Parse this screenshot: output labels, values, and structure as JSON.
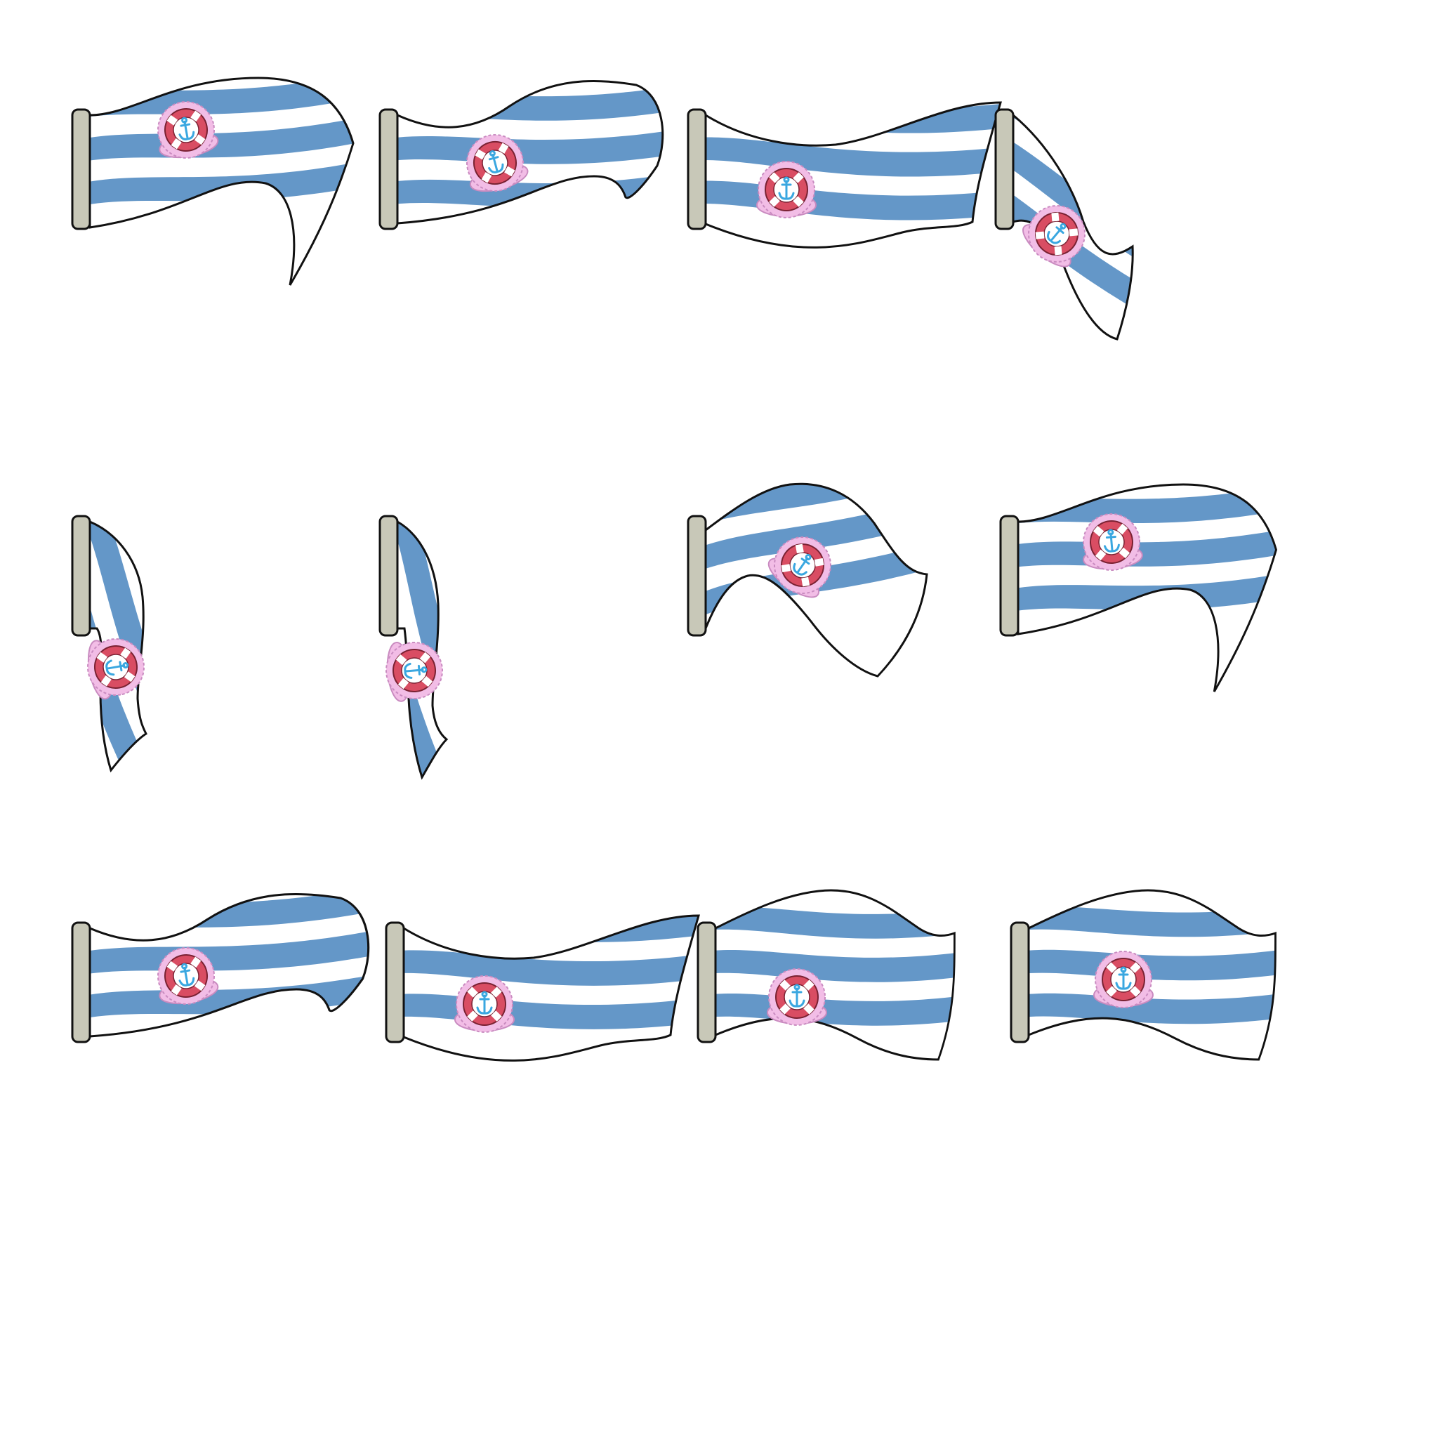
{
  "sprite_sheet": {
    "background_color": "#ffffff",
    "colors": {
      "stripe_blue": "#6497c8",
      "stripe_white": "#ffffff",
      "outline": "#111111",
      "pole": "#c8c8b8",
      "emblem_ring": "#d94d63",
      "emblem_shell": "#f2bde6",
      "anchor": "#3aa7e0"
    },
    "icons": {
      "pole": "flagpole-icon",
      "emblem": "anchor-lifebuoy-emblem-icon"
    },
    "frame_count": 12,
    "frames": [
      {
        "name": "flag-frame-1",
        "pose": "wave-up"
      },
      {
        "name": "flag-frame-2",
        "pose": "wave-up-curl"
      },
      {
        "name": "flag-frame-3",
        "pose": "wave-flat"
      },
      {
        "name": "flag-frame-4",
        "pose": "droop-diagonal"
      },
      {
        "name": "flag-frame-5",
        "pose": "hanging"
      },
      {
        "name": "flag-frame-6",
        "pose": "hanging-narrow"
      },
      {
        "name": "flag-frame-7",
        "pose": "rising"
      },
      {
        "name": "flag-frame-8",
        "pose": "wave-up"
      },
      {
        "name": "flag-frame-9",
        "pose": "wave-up-curl"
      },
      {
        "name": "flag-frame-10",
        "pose": "wave-flat"
      },
      {
        "name": "flag-frame-11",
        "pose": "wave-down"
      },
      {
        "name": "flag-frame-12",
        "pose": "wave-down"
      }
    ]
  }
}
